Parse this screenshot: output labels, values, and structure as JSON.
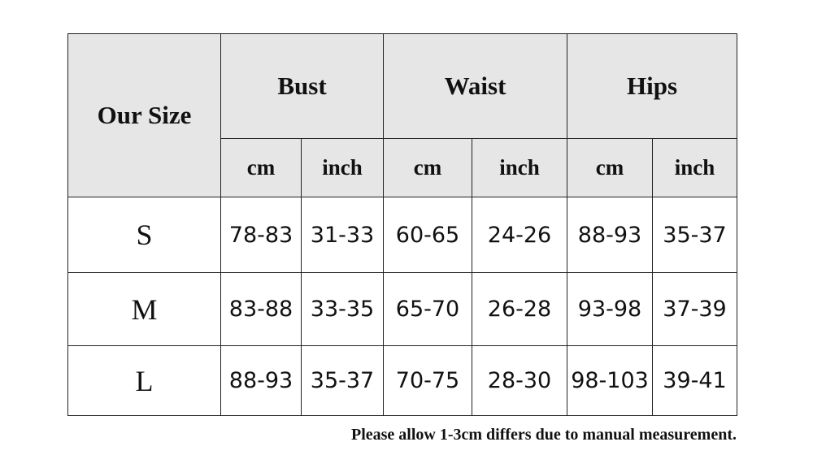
{
  "table": {
    "header": {
      "size_label": "Our Size",
      "groups": [
        "Bust",
        "Waist",
        "Hips"
      ],
      "units": [
        "cm",
        "inch",
        "cm",
        "inch",
        "cm",
        "inch"
      ]
    },
    "rows": [
      [
        "S",
        "78-83",
        "31-33",
        "60-65",
        "24-26",
        "88-93",
        "35-37"
      ],
      [
        "M",
        "83-88",
        "33-35",
        "65-70",
        "26-28",
        "93-98",
        "37-39"
      ],
      [
        "L",
        "88-93",
        "35-37",
        "70-75",
        "28-30",
        "98-103",
        "39-41"
      ]
    ]
  },
  "note": "Please allow 1-3cm differs due to manual measurement."
}
